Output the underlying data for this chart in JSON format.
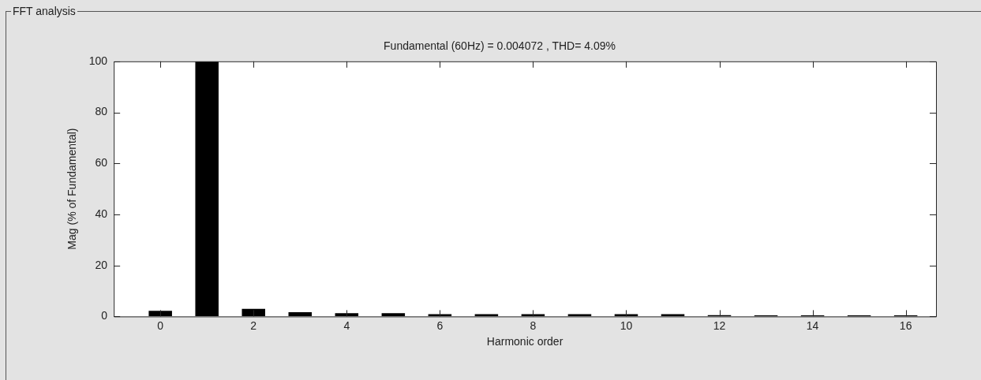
{
  "chart_data": {
    "type": "bar",
    "title": "FFT analysis",
    "subtitle": "Fundamental (60Hz) = 0.004072 , THD= 4.09%",
    "xlabel": "Harmonic order",
    "ylabel": "Mag (% of Fundamental)",
    "x": [
      0,
      1,
      2,
      3,
      4,
      5,
      6,
      7,
      8,
      9,
      10,
      11,
      12,
      13,
      14,
      15,
      16
    ],
    "values": [
      2.2,
      100,
      3.0,
      1.7,
      1.3,
      1.3,
      0.9,
      0.9,
      0.9,
      0.9,
      0.9,
      0.9,
      0.5,
      0.4,
      0.4,
      0.4,
      0.4
    ],
    "color": "#000000",
    "xlim": [
      -1,
      16.65
    ],
    "xticks": [
      0,
      2,
      4,
      6,
      8,
      10,
      12,
      14,
      16
    ],
    "ylim": [
      0,
      100
    ],
    "yticks": [
      0,
      20,
      40,
      60,
      80,
      100
    ],
    "grid": false,
    "legend": false
  }
}
